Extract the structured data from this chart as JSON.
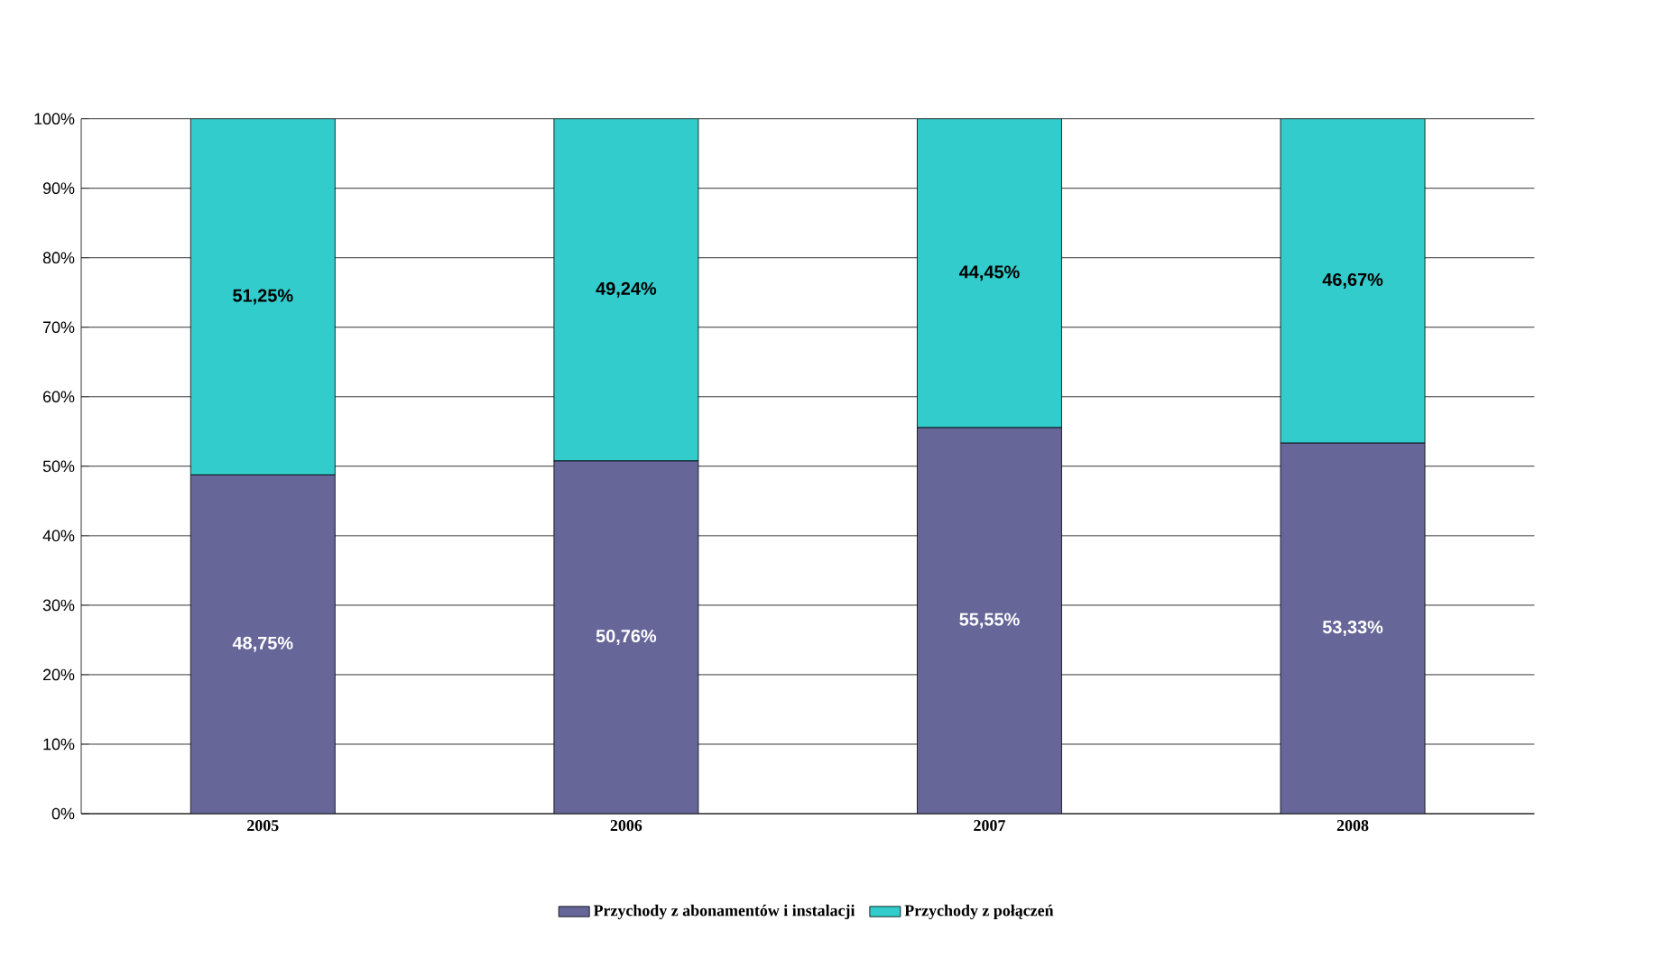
{
  "chart_data": {
    "type": "bar",
    "stacked": true,
    "categories": [
      "2005",
      "2006",
      "2007",
      "2008"
    ],
    "series": [
      {
        "name": "Przychody z abonamentów i instalacji",
        "color": "#666699",
        "values": [
          48.75,
          50.76,
          55.55,
          53.33
        ],
        "value_labels": [
          "48,75%",
          "50,76%",
          "55,55%",
          "53,33%"
        ]
      },
      {
        "name": "Przychody z połączeń",
        "color": "#33cccc",
        "values": [
          51.25,
          49.24,
          44.45,
          46.67
        ],
        "value_labels": [
          "51,25%",
          "49,24%",
          "44,45%",
          "46,67%"
        ]
      }
    ],
    "ylim": [
      0,
      100
    ],
    "yticks": [
      {
        "value": 0,
        "label": "0%"
      },
      {
        "value": 10,
        "label": "10%"
      },
      {
        "value": 20,
        "label": "20%"
      },
      {
        "value": 30,
        "label": "30%"
      },
      {
        "value": 40,
        "label": "40%"
      },
      {
        "value": 50,
        "label": "50%"
      },
      {
        "value": 60,
        "label": "60%"
      },
      {
        "value": 70,
        "label": "70%"
      },
      {
        "value": 80,
        "label": "80%"
      },
      {
        "value": 90,
        "label": "90%"
      },
      {
        "value": 100,
        "label": "100%"
      }
    ],
    "grid": "y",
    "legend": "bottom"
  }
}
